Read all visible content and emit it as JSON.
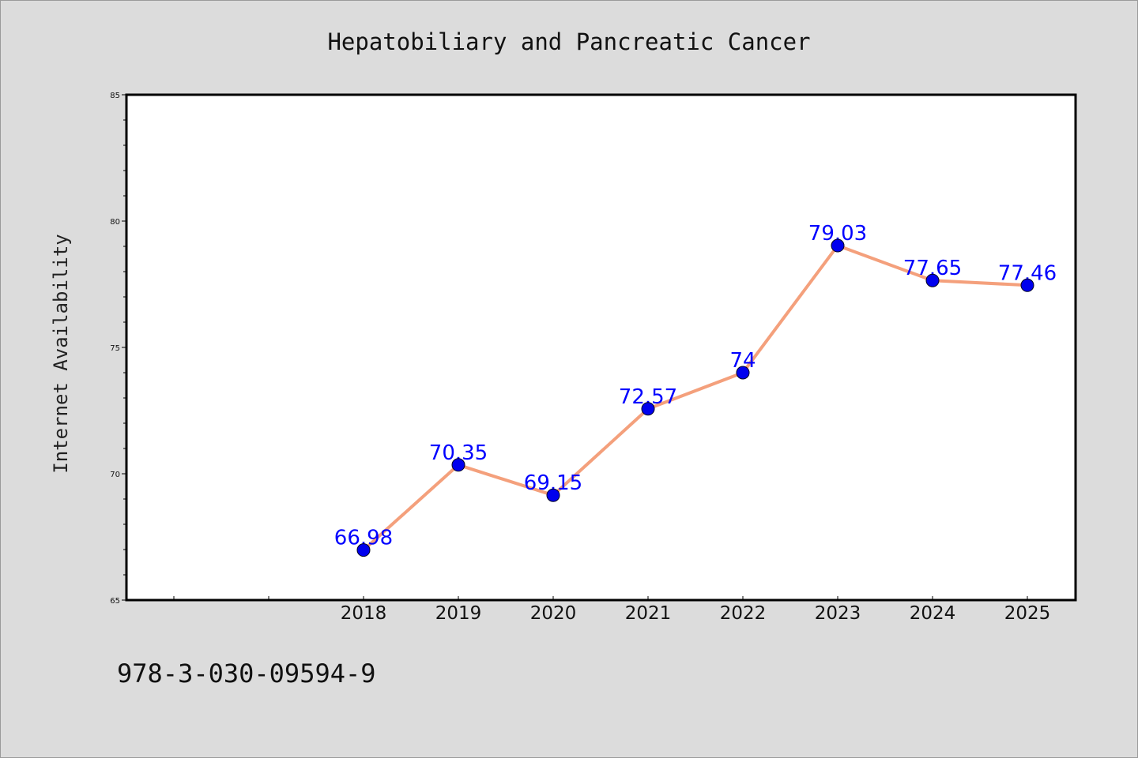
{
  "chart_data": {
    "type": "line",
    "title": "Hepatobiliary and Pancreatic Cancer",
    "xlabel": "",
    "ylabel": "Internet Availability",
    "categories": [
      "2018",
      "2019",
      "2020",
      "2021",
      "2022",
      "2023",
      "2024",
      "2025"
    ],
    "series": [
      {
        "values": [
          66.98,
          70.35,
          69.15,
          72.57,
          74,
          79.03,
          77.65,
          77.46
        ],
        "data_labels": [
          "66.98",
          "70.35",
          "69.15",
          "72.57",
          "74",
          "79.03",
          "77.65",
          "77.46"
        ],
        "line_color": "#f4a07c",
        "marker_color": "#0000ee"
      }
    ],
    "ylim": [
      65,
      85
    ],
    "yticks": [
      "65",
      "70",
      "75",
      "80",
      "85"
    ],
    "grid": false,
    "legend": "none"
  },
  "footer": {
    "isbn": "978-3-030-09594-9"
  }
}
